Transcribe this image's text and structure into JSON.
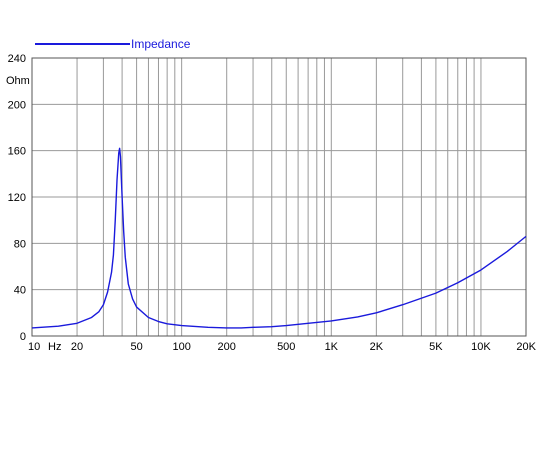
{
  "chart_data": {
    "type": "line",
    "x_scale": "log",
    "xlim": [
      10,
      20000
    ],
    "ylim": [
      0,
      240
    ],
    "grid": true,
    "legend_position": "top-left",
    "ylabel": "Ohm",
    "xlabel": "Hz",
    "x_tick_values": [
      10,
      20,
      50,
      100,
      200,
      500,
      1000,
      2000,
      5000,
      10000,
      20000
    ],
    "x_tick_labels": [
      "10",
      "20",
      "50",
      "100",
      "200",
      "500",
      "1K",
      "2K",
      "5K",
      "10K",
      "20K"
    ],
    "y_tick_values": [
      0,
      40,
      80,
      120,
      160,
      200,
      240
    ],
    "y_tick_labels": [
      "0",
      "40",
      "80",
      "120",
      "160",
      "200",
      "240"
    ],
    "series": [
      {
        "name": "Impedance",
        "color": "#1a1adc",
        "points": [
          [
            10,
            7
          ],
          [
            15,
            8.5
          ],
          [
            20,
            11
          ],
          [
            25,
            16
          ],
          [
            28,
            21
          ],
          [
            30,
            27
          ],
          [
            32,
            38
          ],
          [
            34,
            55
          ],
          [
            35,
            70
          ],
          [
            36,
            100
          ],
          [
            37,
            135
          ],
          [
            38,
            158
          ],
          [
            38.5,
            162
          ],
          [
            39,
            155
          ],
          [
            40,
            120
          ],
          [
            41,
            90
          ],
          [
            42,
            68
          ],
          [
            44,
            45
          ],
          [
            47,
            32
          ],
          [
            50,
            25
          ],
          [
            60,
            16
          ],
          [
            70,
            12.5
          ],
          [
            80,
            10.5
          ],
          [
            100,
            9
          ],
          [
            150,
            7.5
          ],
          [
            200,
            7
          ],
          [
            250,
            7
          ],
          [
            300,
            7.5
          ],
          [
            400,
            8
          ],
          [
            500,
            9
          ],
          [
            700,
            11
          ],
          [
            1000,
            13
          ],
          [
            1500,
            16.5
          ],
          [
            2000,
            20
          ],
          [
            3000,
            27
          ],
          [
            5000,
            37
          ],
          [
            7000,
            46
          ],
          [
            10000,
            57
          ],
          [
            15000,
            73
          ],
          [
            20000,
            86
          ]
        ]
      }
    ]
  }
}
